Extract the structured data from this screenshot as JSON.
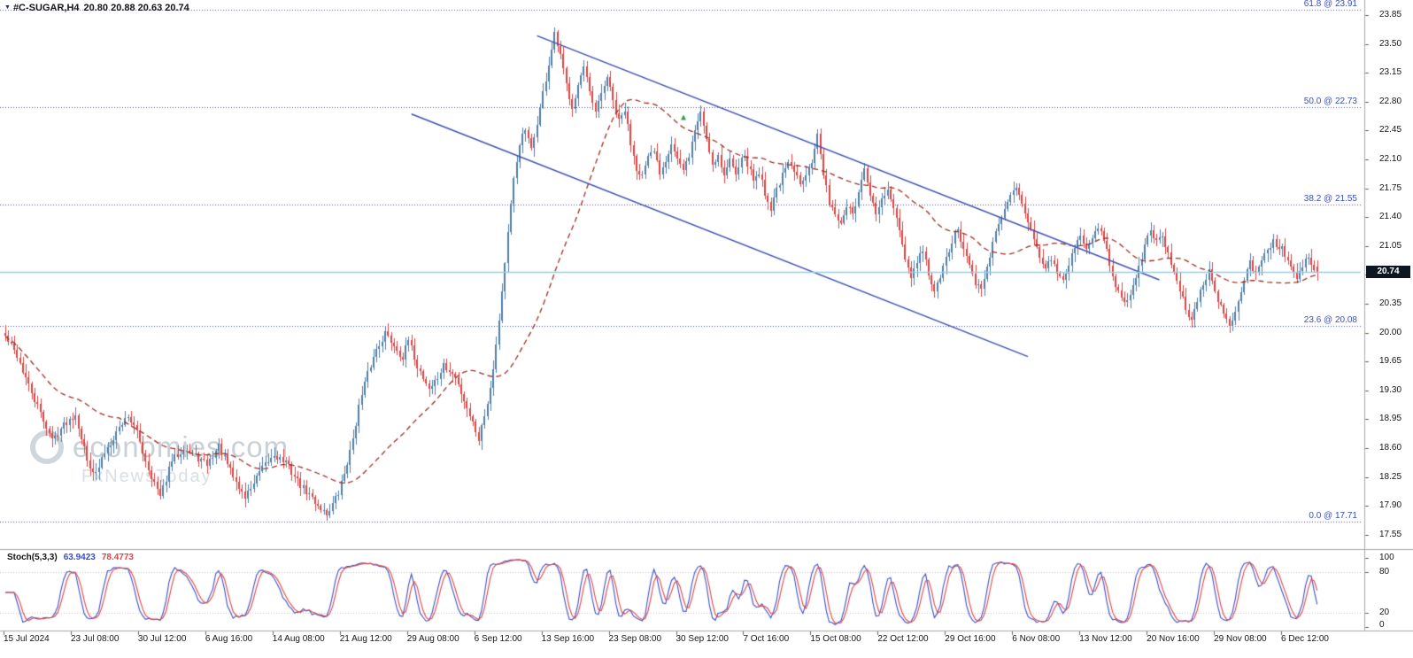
{
  "header": {
    "symbol": "#C-SUGAR,H4",
    "ohlc": "20.80 20.88 20.63 20.74"
  },
  "watermark": {
    "brand": "economies.com",
    "subtitle": "FxNewsToday"
  },
  "colors": {
    "up_candle": "#4f7ea6",
    "down_candle": "#de4242",
    "ma": "#9a2e23",
    "channel": "#3f4fb0",
    "fib": "#4053c2",
    "price_line": "#8ecfeb",
    "price_tag_bg": "#0e1621",
    "stoch_k": "#3b4fc4",
    "stoch_d": "#e04545",
    "marker": "#2f9e4e"
  },
  "chart_data": {
    "type": "candlestick",
    "symbol": "#C-SUGAR",
    "timeframe": "H4",
    "title": "#C-SUGAR,H4 20.80 20.88 20.63 20.74",
    "candle_count": 450,
    "last_candle": {
      "open": 20.8,
      "high": 20.88,
      "low": 20.63,
      "close": 20.74
    },
    "current_price": 20.74,
    "current_price_label": "20.74",
    "y_axis": {
      "min": 17.55,
      "max": 23.85,
      "step": 0.35,
      "ticks": [
        "23.85",
        "23.50",
        "23.15",
        "22.80",
        "22.45",
        "22.10",
        "21.75",
        "21.40",
        "21.05",
        "20.70",
        "20.35",
        "20.00",
        "19.65",
        "19.30",
        "18.95",
        "18.60",
        "18.25",
        "17.90",
        "17.55"
      ]
    },
    "x_axis": {
      "labels": [
        "15 Jul 2024",
        "23 Jul 08:00",
        "30 Jul 12:00",
        "6 Aug 16:00",
        "14 Aug 08:00",
        "21 Aug 12:00",
        "29 Aug 08:00",
        "6 Sep 12:00",
        "13 Sep 16:00",
        "23 Sep 08:00",
        "30 Sep 12:00",
        "7 Oct 16:00",
        "15 Oct 08:00",
        "22 Oct 12:00",
        "29 Oct 16:00",
        "6 Nov 08:00",
        "13 Nov 12:00",
        "20 Nov 16:00",
        "29 Nov 08:00",
        "6 Dec 12:00"
      ]
    },
    "fib_levels": [
      {
        "label": "61.8 @ 23.91",
        "price": 23.91
      },
      {
        "label": "50.0 @ 22.73",
        "price": 22.73
      },
      {
        "label": "38.2 @ 21.55",
        "price": 21.55
      },
      {
        "label": "23.6 @ 20.08",
        "price": 20.08
      },
      {
        "label": "0.0 @ 17.71",
        "price": 17.71
      }
    ],
    "channel": {
      "upper": {
        "from": [
          182,
          23.6
        ],
        "to": [
          395,
          20.64
        ]
      },
      "lower": {
        "from": [
          139,
          22.65
        ],
        "to": [
          350,
          19.71
        ]
      }
    },
    "marker": {
      "index": 232,
      "price": 22.6,
      "shape": "up-arrow"
    },
    "moving_average": {
      "type": "SMA",
      "period": 40,
      "style": "dashed"
    },
    "stoch": {
      "label": "Stoch(5,3,3)",
      "k": "63.9423",
      "d": "78.4773",
      "levels": [
        {
          "label": "100",
          "value": 100
        },
        {
          "label": "80",
          "value": 80
        },
        {
          "label": "20",
          "value": 20
        },
        {
          "label": "0",
          "value": 0
        }
      ]
    },
    "price_path": [
      [
        0,
        19.95
      ],
      [
        4,
        19.72
      ],
      [
        8,
        19.35
      ],
      [
        12,
        19.02
      ],
      [
        16,
        18.7
      ],
      [
        20,
        18.88
      ],
      [
        24,
        19.02
      ],
      [
        28,
        18.45
      ],
      [
        31,
        18.28
      ],
      [
        34,
        18.55
      ],
      [
        38,
        18.8
      ],
      [
        42,
        19.0
      ],
      [
        45,
        18.78
      ],
      [
        49,
        18.35
      ],
      [
        53,
        18.0
      ],
      [
        57,
        18.45
      ],
      [
        61,
        18.6
      ],
      [
        65,
        18.5
      ],
      [
        69,
        18.4
      ],
      [
        73,
        18.62
      ],
      [
        78,
        18.25
      ],
      [
        82,
        18.0
      ],
      [
        87,
        18.3
      ],
      [
        92,
        18.52
      ],
      [
        96,
        18.42
      ],
      [
        101,
        18.15
      ],
      [
        106,
        17.95
      ],
      [
        110,
        17.8
      ],
      [
        114,
        18.05
      ],
      [
        118,
        18.55
      ],
      [
        121,
        19.1
      ],
      [
        124,
        19.5
      ],
      [
        127,
        19.8
      ],
      [
        130,
        20.0
      ],
      [
        133,
        19.85
      ],
      [
        136,
        19.7
      ],
      [
        138,
        19.9
      ],
      [
        141,
        19.6
      ],
      [
        145,
        19.32
      ],
      [
        148,
        19.45
      ],
      [
        150,
        19.6
      ],
      [
        154,
        19.45
      ],
      [
        158,
        19.1
      ],
      [
        162,
        18.72
      ],
      [
        164,
        19.0
      ],
      [
        166,
        19.35
      ],
      [
        168,
        19.85
      ],
      [
        170,
        20.5
      ],
      [
        172,
        21.2
      ],
      [
        174,
        21.85
      ],
      [
        176,
        22.3
      ],
      [
        178,
        22.45
      ],
      [
        180,
        22.2
      ],
      [
        182,
        22.55
      ],
      [
        184,
        22.9
      ],
      [
        186,
        23.25
      ],
      [
        188,
        23.6
      ],
      [
        190,
        23.35
      ],
      [
        192,
        23.0
      ],
      [
        194,
        22.75
      ],
      [
        196,
        23.0
      ],
      [
        198,
        23.2
      ],
      [
        200,
        22.9
      ],
      [
        202,
        22.65
      ],
      [
        204,
        22.9
      ],
      [
        206,
        23.1
      ],
      [
        208,
        22.8
      ],
      [
        210,
        22.55
      ],
      [
        212,
        22.7
      ],
      [
        214,
        22.3
      ],
      [
        216,
        22.0
      ],
      [
        218,
        21.9
      ],
      [
        220,
        22.1
      ],
      [
        222,
        22.2
      ],
      [
        224,
        21.95
      ],
      [
        226,
        22.1
      ],
      [
        228,
        22.3
      ],
      [
        230,
        22.1
      ],
      [
        232,
        21.95
      ],
      [
        234,
        22.15
      ],
      [
        236,
        22.45
      ],
      [
        238,
        22.68
      ],
      [
        240,
        22.35
      ],
      [
        242,
        22.05
      ],
      [
        244,
        22.15
      ],
      [
        246,
        21.9
      ],
      [
        248,
        22.1
      ],
      [
        250,
        21.95
      ],
      [
        252,
        22.15
      ],
      [
        254,
        22.05
      ],
      [
        256,
        21.85
      ],
      [
        258,
        21.95
      ],
      [
        260,
        21.7
      ],
      [
        262,
        21.5
      ],
      [
        264,
        21.75
      ],
      [
        266,
        21.9
      ],
      [
        268,
        22.05
      ],
      [
        270,
        21.95
      ],
      [
        272,
        21.8
      ],
      [
        274,
        21.95
      ],
      [
        276,
        22.1
      ],
      [
        278,
        22.4
      ],
      [
        280,
        21.9
      ],
      [
        282,
        21.6
      ],
      [
        284,
        21.45
      ],
      [
        286,
        21.3
      ],
      [
        288,
        21.55
      ],
      [
        290,
        21.4
      ],
      [
        292,
        21.7
      ],
      [
        294,
        21.95
      ],
      [
        296,
        21.65
      ],
      [
        298,
        21.45
      ],
      [
        300,
        21.6
      ],
      [
        302,
        21.72
      ],
      [
        304,
        21.5
      ],
      [
        306,
        21.2
      ],
      [
        308,
        20.9
      ],
      [
        310,
        20.65
      ],
      [
        312,
        20.85
      ],
      [
        314,
        21.0
      ],
      [
        316,
        20.7
      ],
      [
        318,
        20.5
      ],
      [
        320,
        20.65
      ],
      [
        322,
        20.9
      ],
      [
        324,
        21.1
      ],
      [
        326,
        21.25
      ],
      [
        328,
        21.0
      ],
      [
        330,
        20.8
      ],
      [
        332,
        20.6
      ],
      [
        334,
        20.5
      ],
      [
        336,
        20.8
      ],
      [
        338,
        21.1
      ],
      [
        340,
        21.3
      ],
      [
        342,
        21.5
      ],
      [
        344,
        21.65
      ],
      [
        346,
        21.8
      ],
      [
        348,
        21.6
      ],
      [
        350,
        21.35
      ],
      [
        352,
        21.1
      ],
      [
        354,
        20.95
      ],
      [
        356,
        20.8
      ],
      [
        358,
        20.9
      ],
      [
        360,
        20.7
      ],
      [
        362,
        20.6
      ],
      [
        364,
        20.85
      ],
      [
        366,
        21.05
      ],
      [
        368,
        21.2
      ],
      [
        370,
        21.0
      ],
      [
        372,
        21.15
      ],
      [
        374,
        21.3
      ],
      [
        376,
        21.1
      ],
      [
        378,
        20.85
      ],
      [
        380,
        20.6
      ],
      [
        382,
        20.45
      ],
      [
        384,
        20.35
      ],
      [
        386,
        20.55
      ],
      [
        388,
        20.8
      ],
      [
        390,
        21.05
      ],
      [
        392,
        21.25
      ],
      [
        394,
        21.1
      ],
      [
        396,
        21.2
      ],
      [
        398,
        20.95
      ],
      [
        400,
        20.7
      ],
      [
        402,
        20.5
      ],
      [
        404,
        20.3
      ],
      [
        406,
        20.15
      ],
      [
        408,
        20.4
      ],
      [
        410,
        20.6
      ],
      [
        412,
        20.75
      ],
      [
        414,
        20.5
      ],
      [
        416,
        20.3
      ],
      [
        418,
        20.15
      ],
      [
        420,
        20.1
      ],
      [
        422,
        20.4
      ],
      [
        424,
        20.65
      ],
      [
        426,
        20.85
      ],
      [
        428,
        20.7
      ],
      [
        430,
        20.9
      ],
      [
        432,
        21.0
      ],
      [
        434,
        21.1
      ],
      [
        436,
        21.05
      ],
      [
        438,
        20.95
      ],
      [
        440,
        20.8
      ],
      [
        442,
        20.65
      ],
      [
        444,
        20.82
      ],
      [
        446,
        20.88
      ],
      [
        449,
        20.74
      ]
    ]
  }
}
